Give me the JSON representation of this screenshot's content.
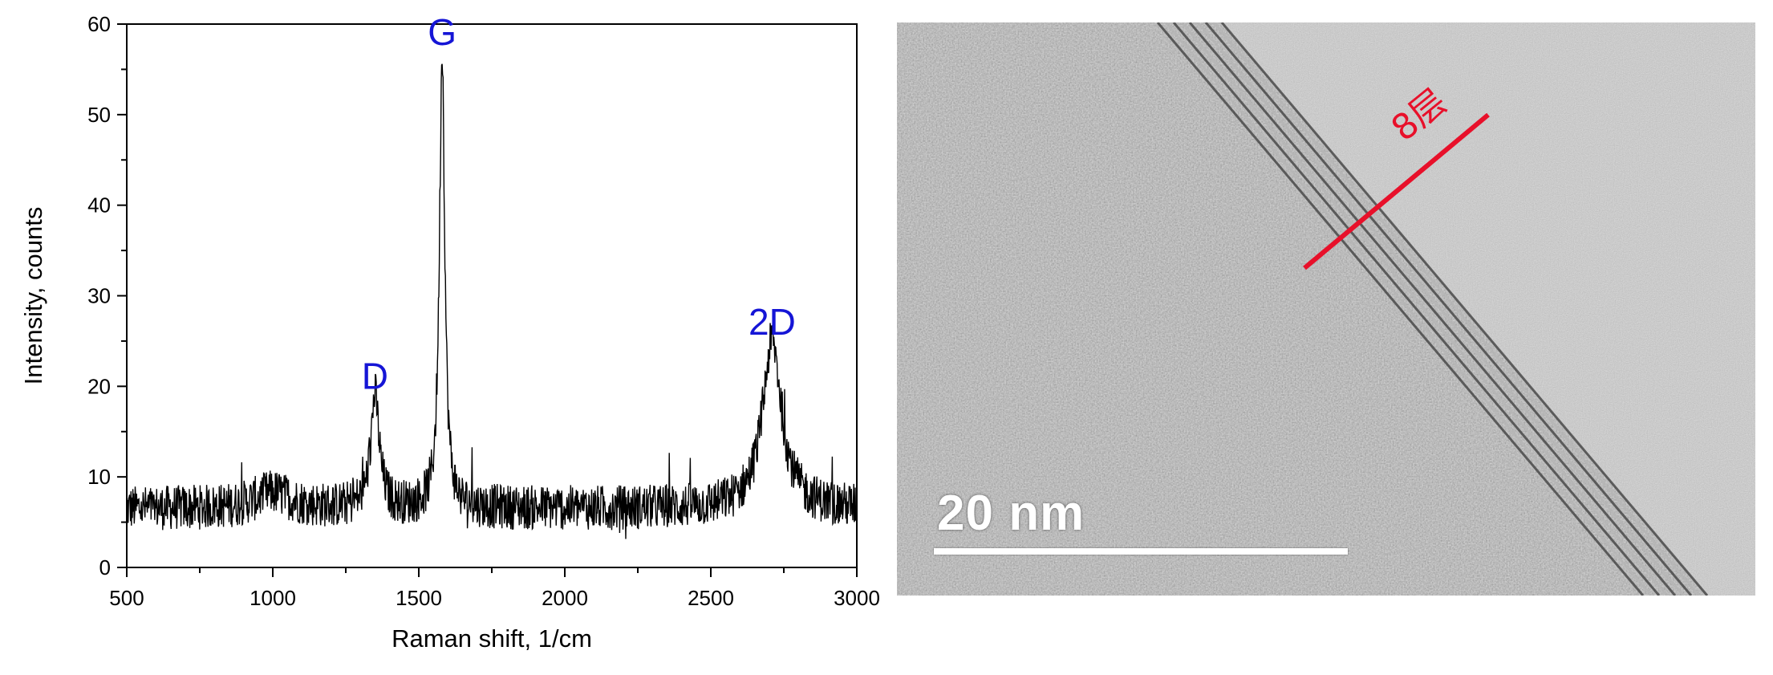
{
  "chart_data": {
    "type": "line",
    "xlabel": "Raman shift, 1/cm",
    "ylabel": "Intensity, counts",
    "xlim": [
      500,
      3000
    ],
    "ylim": [
      0,
      60
    ],
    "x_ticks": [
      500,
      1000,
      1500,
      2000,
      2500,
      3000
    ],
    "y_ticks": [
      0,
      10,
      20,
      30,
      40,
      50,
      60
    ],
    "grid": false,
    "line_color": "#000000",
    "annotation_color": "#1515d6",
    "baseline_level": 6.5,
    "noise_amplitude": 2.5,
    "peaks": [
      {
        "label": "D",
        "x": 1350,
        "y": 19,
        "fwhm": 35
      },
      {
        "label": "G",
        "x": 1580,
        "y": 57,
        "fwhm": 22
      },
      {
        "label": "2D",
        "x": 2710,
        "y": 25,
        "fwhm": 80
      }
    ],
    "broad_features": [
      {
        "x": 1000,
        "y": 10,
        "fwhm": 150
      }
    ]
  },
  "tem_image": {
    "scale_bar_label": "20 nm",
    "layer_label": "8层",
    "annotation_color": "#e8102a"
  }
}
